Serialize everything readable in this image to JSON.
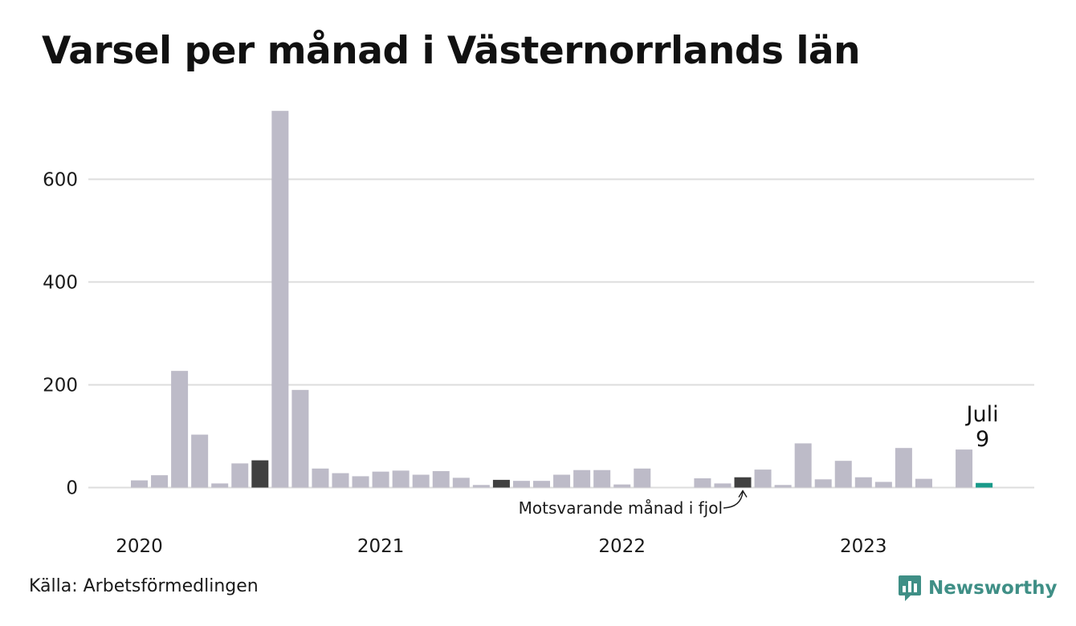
{
  "title": "Varsel per månad i Västernorrlands län",
  "source": "Källa: Arbetsförmedlingen",
  "logo_text": "Newsworthy",
  "colors": {
    "bar": "#bdbbc8",
    "bar_prev_year": "#404040",
    "bar_current": "#1a9a8a",
    "grid": "#dddddd",
    "logo": "#3f8f86"
  },
  "chart_data": {
    "type": "bar",
    "title": "Varsel per månad i Västernorrlands län",
    "xlabel": "",
    "ylabel": "",
    "ylim": [
      0,
      740
    ],
    "yticks": [
      0,
      200,
      400,
      600
    ],
    "grid": true,
    "year_labels": [
      "2020",
      "2021",
      "2022",
      "2023"
    ],
    "categories": [
      "2020-01",
      "2020-02",
      "2020-03",
      "2020-04",
      "2020-05",
      "2020-06",
      "2020-07",
      "2020-08",
      "2020-09",
      "2020-10",
      "2020-11",
      "2020-12",
      "2021-01",
      "2021-02",
      "2021-03",
      "2021-04",
      "2021-05",
      "2021-06",
      "2021-07",
      "2021-08",
      "2021-09",
      "2021-10",
      "2021-11",
      "2021-12",
      "2022-01",
      "2022-02",
      "2022-03",
      "2022-04",
      "2022-05",
      "2022-06",
      "2022-07",
      "2022-08",
      "2022-09",
      "2022-10",
      "2022-11",
      "2022-12",
      "2023-01",
      "2023-02",
      "2023-03",
      "2023-04",
      "2023-05",
      "2023-06",
      "2023-07"
    ],
    "values": [
      14,
      24,
      227,
      103,
      8,
      47,
      53,
      733,
      190,
      37,
      28,
      22,
      31,
      33,
      25,
      32,
      19,
      5,
      15,
      13,
      13,
      25,
      34,
      34,
      6,
      37,
      0,
      0,
      18,
      8,
      20,
      35,
      5,
      86,
      16,
      52,
      20,
      11,
      77,
      17,
      0,
      74,
      9
    ],
    "highlight_prev_year": [
      "2020-07",
      "2021-07",
      "2022-07"
    ],
    "highlight_current": "2023-07",
    "annotation": "Motsvarande månad i fjol",
    "current_label": {
      "month": "Juli",
      "value": "9"
    }
  }
}
